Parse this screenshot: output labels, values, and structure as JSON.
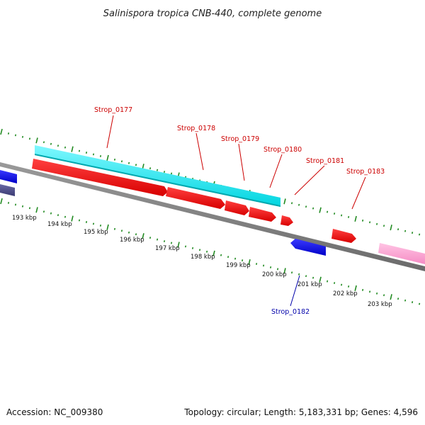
{
  "title": "Salinispora tropica CNB-440, complete genome",
  "footer": {
    "accession": "Accession: NC_009380",
    "topology": "Topology: circular; Length: 5,183,331 bp; Genes: 4,596"
  },
  "ruler": {
    "labels": [
      "193 kbp",
      "194 kbp",
      "195 kbp",
      "196 kbp",
      "197 kbp",
      "198 kbp",
      "199 kbp",
      "200 kbp",
      "201 kbp",
      "202 kbp",
      "203 kbp"
    ]
  },
  "genes": [
    {
      "name": "Strop_0177",
      "strand": "forward",
      "color": "#cc0000"
    },
    {
      "name": "Strop_0178",
      "strand": "forward",
      "color": "#cc0000"
    },
    {
      "name": "Strop_0179",
      "strand": "forward",
      "color": "#cc0000"
    },
    {
      "name": "Strop_0180",
      "strand": "forward",
      "color": "#cc0000"
    },
    {
      "name": "Strop_0181",
      "strand": "forward",
      "color": "#cc0000"
    },
    {
      "name": "Strop_0182",
      "strand": "reverse",
      "color": "#0000aa"
    },
    {
      "name": "Strop_0183",
      "strand": "forward",
      "color": "#cc0000"
    }
  ],
  "colors": {
    "forward_gene": "#ff0000",
    "reverse_gene": "#0000ff",
    "cds_feature": "#00e5ee",
    "backbone": "#808080",
    "tick_marks": "#228b22",
    "pink_feature": "#ff9ccf",
    "dark_feature": "#4b4b8a"
  }
}
